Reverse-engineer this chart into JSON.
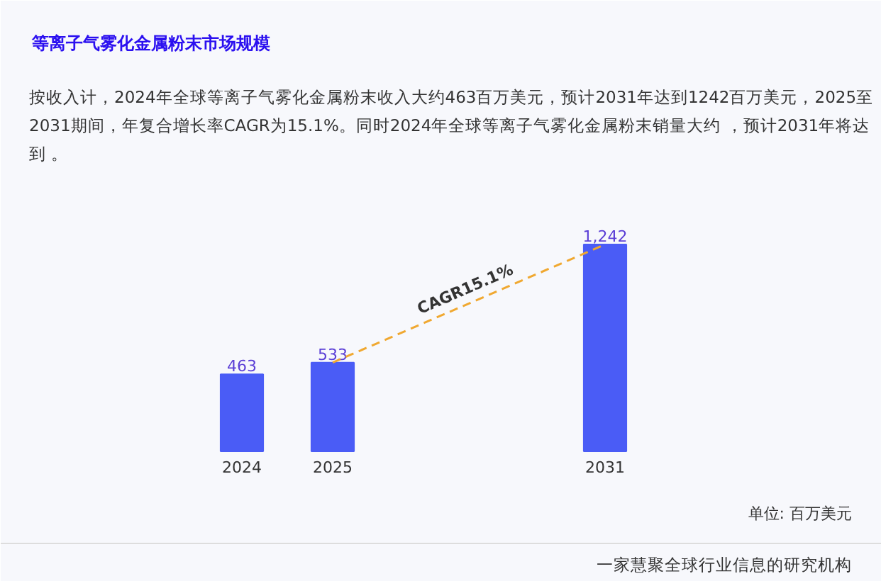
{
  "chart_data": {
    "type": "bar",
    "title": "等离子气雾化金属粉末市场规模",
    "subtitle": "按收入计，2024年全球等离子气雾化金属粉末收入大约463百万美元，预计2031年达到1242百万美元，2025至2031期间，年复合增长率CAGR为15.1%。同时2024年全球等离子气雾化金属粉末销量大约 ，预计2031年将达到 。",
    "categories": [
      "2024",
      "2025",
      null,
      null,
      "2031"
    ],
    "series": [
      {
        "color": "#4a5cf6",
        "values": [
          463,
          533,
          null,
          null,
          1242
        ],
        "value_labels": [
          "463",
          "533",
          null,
          null,
          "1,242"
        ]
      },
      {
        "type": "line",
        "color": "#f0a830",
        "line_style": "dashed",
        "values": [
          null,
          533,
          null,
          null,
          1242
        ]
      }
    ],
    "annotations": [
      "CAGR15.1%",
      "单位: 百万美元",
      "一家慧聚全球行业信息的研究机构"
    ],
    "grid": false
  }
}
